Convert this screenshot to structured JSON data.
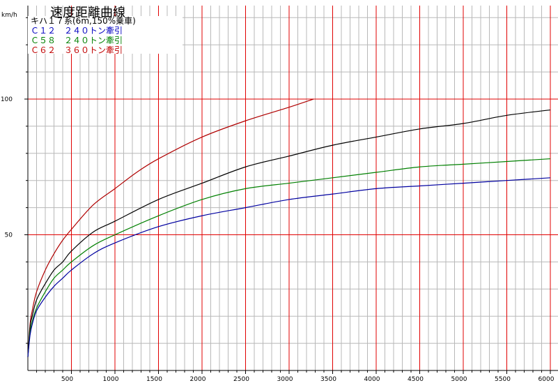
{
  "chart_data": {
    "type": "line",
    "title": "速度距離曲線",
    "subtitle": "キハ１７系(6m,150%乗車)",
    "ylabel": "km/h",
    "xlabel": "",
    "xlim": [
      0,
      6000
    ],
    "ylim": [
      0,
      130
    ],
    "x_major_step": 500,
    "x_minor_step": 100,
    "y_major_step": 50,
    "y_minor_step": 10,
    "x_tick_labels": [
      "500",
      "1000",
      "1500",
      "2000",
      "2500",
      "3000",
      "3500",
      "4000",
      "4500",
      "5000",
      "5500",
      "6000"
    ],
    "y_tick_labels": [
      "50",
      "100"
    ],
    "grid": true,
    "colors": {
      "major_grid": "#e00000",
      "minor_grid": "#b8b8b8",
      "axis": "#000000"
    },
    "series": [
      {
        "name": "C62 360トン牽引",
        "color": "#b00000",
        "x": [
          0,
          25,
          50,
          100,
          200,
          300,
          400,
          500,
          750,
          1000,
          1250,
          1500,
          2000,
          2500,
          3000,
          3280
        ],
        "y": [
          5,
          17,
          22,
          29,
          37,
          43,
          48,
          52,
          61,
          67,
          73,
          78,
          86,
          92,
          97,
          100
        ]
      },
      {
        "name": "",
        "color": "#000000",
        "x": [
          0,
          25,
          50,
          100,
          200,
          300,
          400,
          500,
          750,
          1000,
          1500,
          2000,
          2500,
          3000,
          3500,
          4000,
          4500,
          5000,
          5500,
          6000
        ],
        "y": [
          5,
          16,
          20,
          26,
          32,
          37,
          40,
          44,
          51,
          55,
          63,
          69,
          75,
          79,
          83,
          86,
          89,
          91,
          94,
          96
        ]
      },
      {
        "name": "C58 240トン牽引",
        "color": "#008000",
        "x": [
          0,
          25,
          50,
          100,
          200,
          300,
          400,
          500,
          750,
          1000,
          1500,
          2000,
          2500,
          3000,
          3500,
          4000,
          4500,
          5000,
          5500,
          6000
        ],
        "y": [
          5,
          14,
          18,
          23,
          29,
          34,
          37,
          40,
          46,
          50,
          57,
          63,
          67,
          69,
          71,
          73,
          75,
          76,
          77,
          78
        ]
      },
      {
        "name": "C12 240トン牽引",
        "color": "#0000a0",
        "x": [
          0,
          25,
          50,
          100,
          200,
          300,
          400,
          500,
          750,
          1000,
          1500,
          2000,
          2500,
          3000,
          3500,
          4000,
          4500,
          5000,
          5500,
          6000
        ],
        "y": [
          5,
          13,
          17,
          22,
          27,
          31,
          34,
          37,
          43,
          47,
          53,
          57,
          60,
          63,
          65,
          67,
          68,
          69,
          70,
          71
        ]
      }
    ]
  },
  "legend": [
    {
      "text": "Ｃ１２　２４０トン牽引",
      "color": "#0000c0"
    },
    {
      "text": "Ｃ５８　２４０トン牽引",
      "color": "#008000"
    },
    {
      "text": "Ｃ６２　３６０トン牽引",
      "color": "#c00000"
    }
  ]
}
